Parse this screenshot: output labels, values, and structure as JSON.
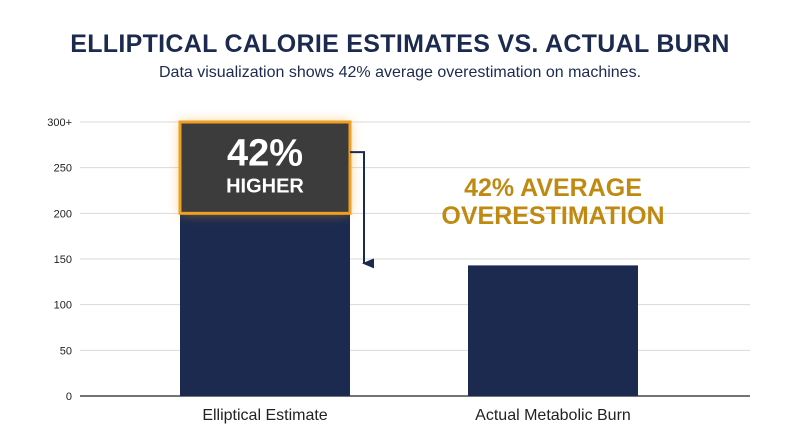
{
  "header": {
    "title": "ELLIPTICAL CALORIE ESTIMATES VS. ACTUAL BURN",
    "subtitle": "Data visualization shows 42% average overestimation on machines."
  },
  "chart_data": {
    "type": "bar",
    "categories": [
      "Elliptical Estimate",
      "Actual Metabolic Burn"
    ],
    "values": [
      300,
      143
    ],
    "baseline_portion": [
      200,
      143
    ],
    "ylim": [
      0,
      300
    ],
    "yticks": [
      "0",
      "50",
      "100",
      "150",
      "200",
      "250",
      "300+"
    ],
    "grid": true,
    "highlight": {
      "big_text": "42%",
      "small_text": "HIGHER",
      "from": 200,
      "to": 300
    },
    "annotation_lines": [
      "42% AVERAGE",
      "OVERESTIMATION"
    ],
    "colors": {
      "bar": "#1b2a4e",
      "highlight_fill": "#3c3c3c",
      "highlight_glow": "#f0a020",
      "annotation": "#c08a12",
      "grid": "#d9d9d9"
    }
  }
}
